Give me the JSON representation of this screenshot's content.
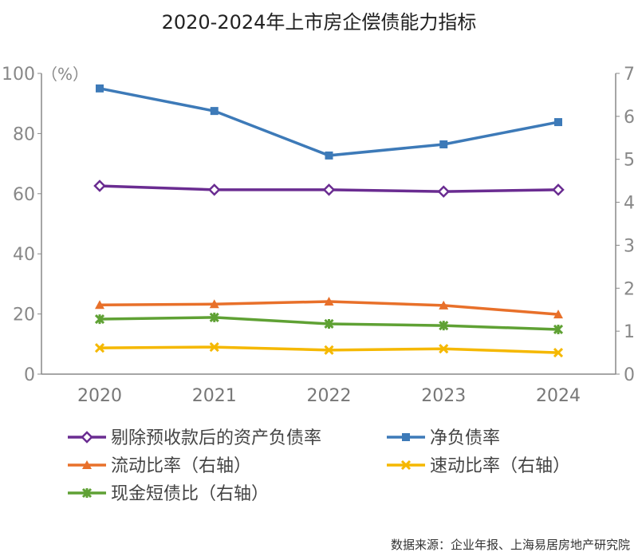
{
  "chart_data": {
    "type": "line",
    "title": "2020-2024年上市房企偿债能力指标",
    "left_axis_unit": "（%）",
    "categories": [
      "2020",
      "2021",
      "2022",
      "2023",
      "2024"
    ],
    "y_left": {
      "range": [
        0,
        100
      ],
      "ticks": [
        "0",
        "20",
        "40",
        "60",
        "80",
        "100"
      ]
    },
    "y_right": {
      "range": [
        0,
        7
      ],
      "ticks": [
        "0",
        "1",
        "2",
        "3",
        "4",
        "5",
        "6",
        "7"
      ]
    },
    "grid": false,
    "legend_position": "bottom",
    "series": [
      {
        "name": "剔除预收款后的资产负债率",
        "axis": "left",
        "color": "#6a2c91",
        "marker": "diamond",
        "values": [
          62.6,
          61.3,
          61.3,
          60.7,
          61.3
        ]
      },
      {
        "name": "净负债率",
        "axis": "left",
        "color": "#3d7ab8",
        "marker": "square",
        "values": [
          95.0,
          87.5,
          72.7,
          76.4,
          83.8
        ]
      },
      {
        "name": "流动比率（右轴）",
        "axis": "right",
        "color": "#e8702a",
        "marker": "triangle",
        "values": [
          1.61,
          1.63,
          1.69,
          1.6,
          1.39
        ]
      },
      {
        "name": "速动比率（右轴）",
        "axis": "right",
        "color": "#f5b800",
        "marker": "x",
        "values": [
          0.61,
          0.63,
          0.56,
          0.59,
          0.5
        ]
      },
      {
        "name": "现金短债比（右轴）",
        "axis": "right",
        "color": "#5fa134",
        "marker": "star",
        "values": [
          1.28,
          1.32,
          1.17,
          1.13,
          1.04
        ]
      }
    ],
    "source": "数据来源：企业年报、上海易居房地产研究院"
  }
}
